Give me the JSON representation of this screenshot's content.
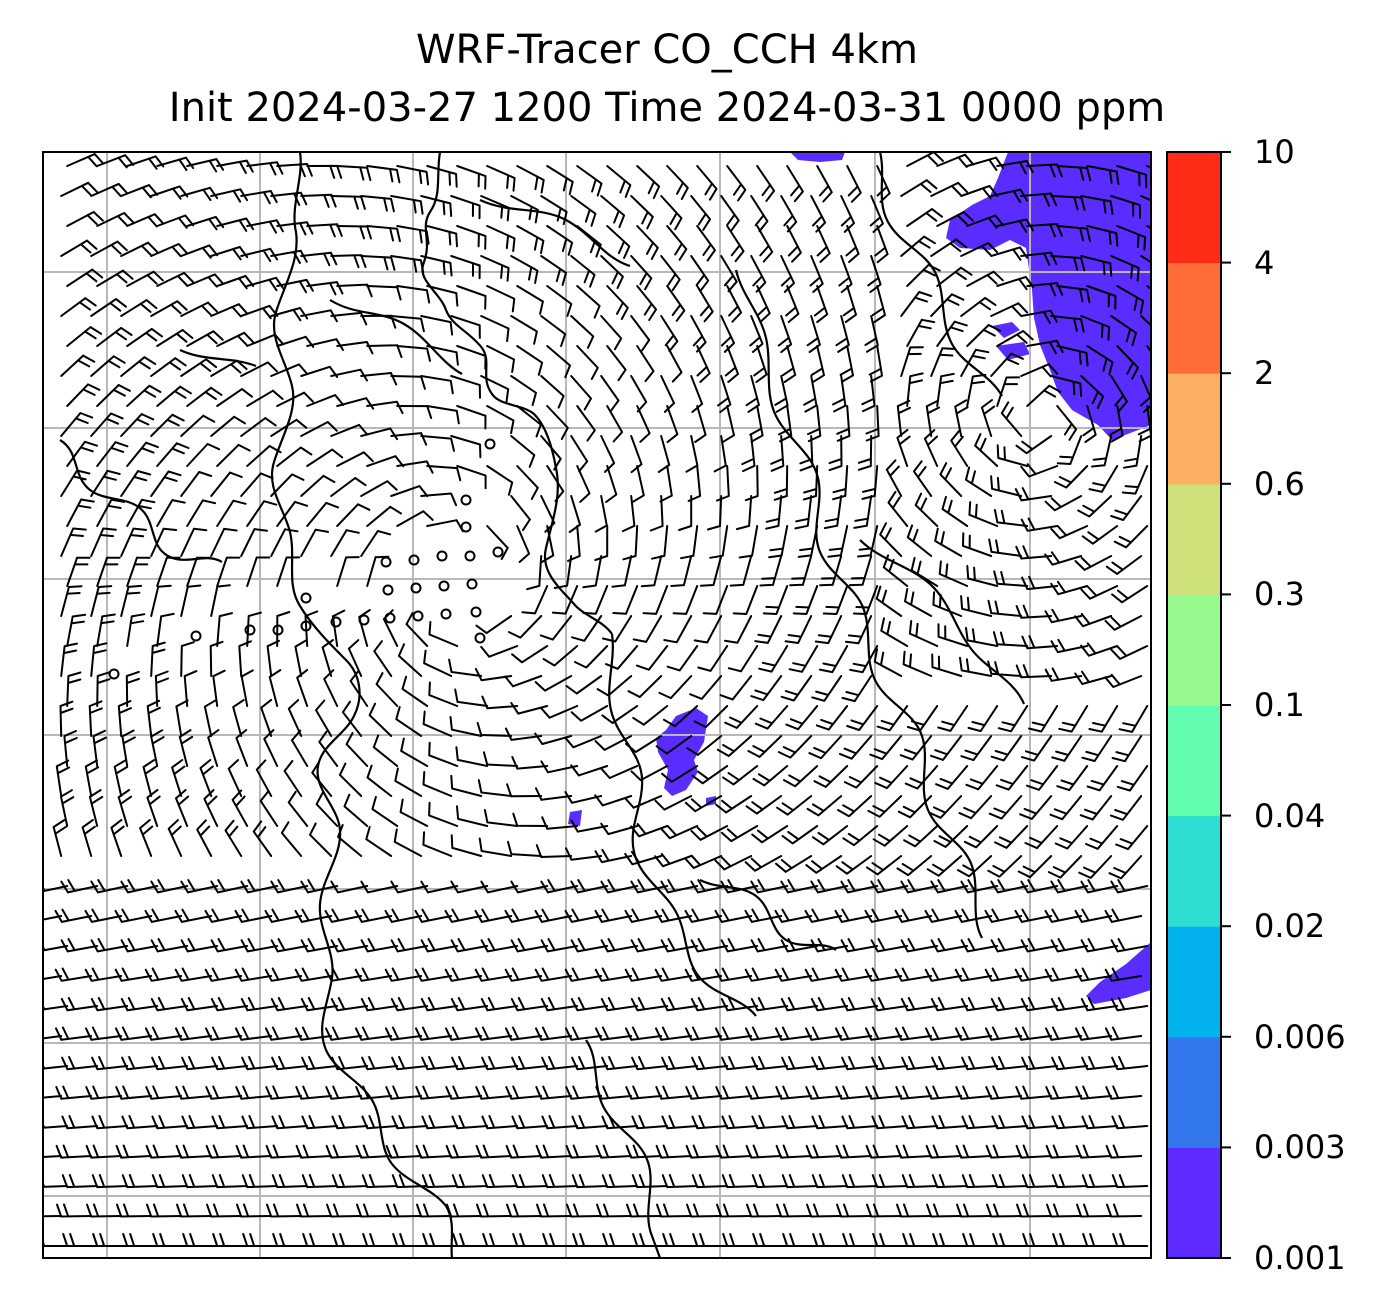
{
  "title": {
    "line1": "WRF-Tracer CO_CCH 4km",
    "line2": "Init 2024-03-27 1200 Time 2024-03-31 0000 ppm"
  },
  "colorbar": {
    "levels": [
      "0.001",
      "0.003",
      "0.006",
      "0.02",
      "0.04",
      "0.1",
      "0.3",
      "0.6",
      "2",
      "4",
      "10"
    ],
    "colors": [
      "#5e2bff",
      "#3277ee",
      "#03b2ec",
      "#2dddd1",
      "#63fdb0",
      "#96fa8f",
      "#cde07a",
      "#fcae61",
      "#fe6c38",
      "#fe2b16"
    ]
  },
  "map": {
    "overlay_color": "#5b2cff",
    "grid_color": "#b8b8b8",
    "wind_barbs": "on"
  }
}
